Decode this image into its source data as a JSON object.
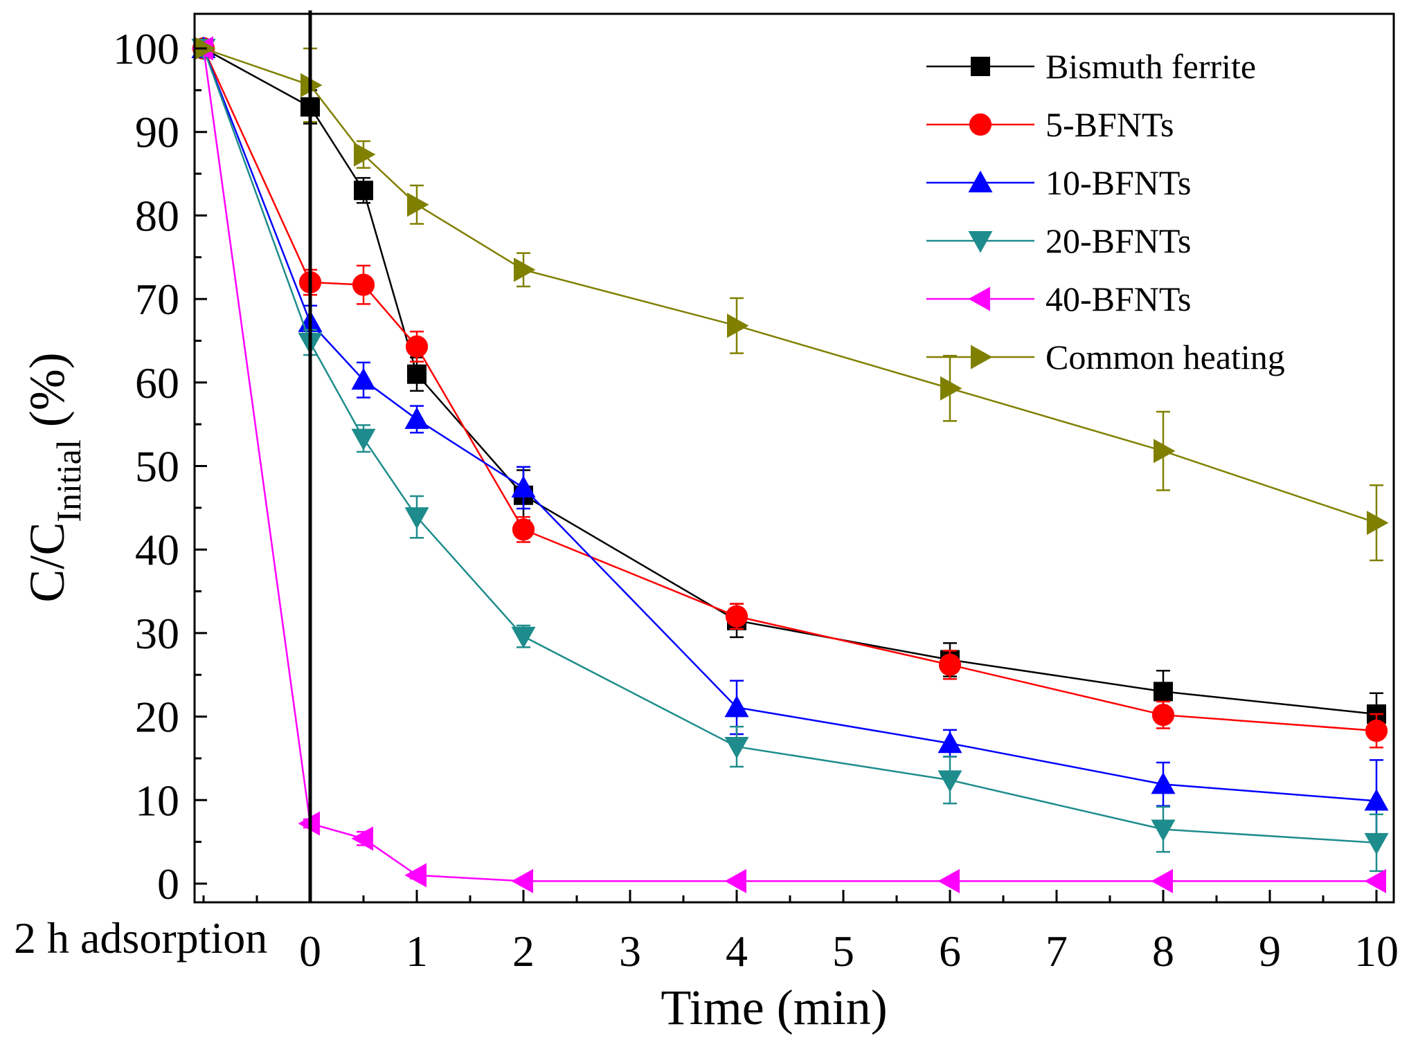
{
  "chart_data": {
    "type": "line",
    "title": "",
    "xlabel": "Time (min)",
    "ylabel_main": "C/C",
    "ylabel_sub": "Initial",
    "ylabel_suffix": " (%)",
    "pre_label": "2 h adsorption",
    "xlim": [
      -1.1,
      10
    ],
    "ylim": [
      0,
      100
    ],
    "xticks": [
      0,
      1,
      2,
      3,
      4,
      5,
      6,
      7,
      8,
      9,
      10
    ],
    "yticks": [
      0,
      10,
      20,
      30,
      40,
      50,
      60,
      70,
      80,
      90,
      100
    ],
    "x": [
      -1,
      0,
      0.5,
      1,
      2,
      4,
      6,
      8,
      10
    ],
    "legend_position": "top-right",
    "series": [
      {
        "name": "Bismuth ferrite",
        "color": "#000000",
        "marker": "square",
        "values": [
          100,
          93,
          83,
          61,
          46.5,
          31.5,
          26.8,
          23,
          20.3
        ],
        "errors": [
          0,
          2,
          1.5,
          2,
          3,
          2,
          2,
          2.5,
          2.5
        ]
      },
      {
        "name": "5-BFNTs",
        "color": "#ff0000",
        "marker": "circle",
        "values": [
          100,
          72,
          71.7,
          64.3,
          42.4,
          32,
          26.2,
          20.2,
          18.3
        ],
        "errors": [
          0,
          1.5,
          2.3,
          1.8,
          1.5,
          1.5,
          1.7,
          1.6,
          2
        ]
      },
      {
        "name": "10-BFNTs",
        "color": "#0000ff",
        "marker": "triangle-up",
        "values": [
          100,
          67.2,
          60.3,
          55.6,
          47.4,
          21.1,
          16.8,
          11.9,
          9.9
        ],
        "errors": [
          0,
          2,
          2.1,
          1.6,
          2.5,
          3.2,
          1.6,
          2.6,
          4.9
        ]
      },
      {
        "name": "20-BFNTs",
        "color": "#1e8c8c",
        "marker": "triangle-down",
        "values": [
          100,
          64.8,
          53.3,
          43.9,
          29.6,
          16.4,
          12.4,
          6.5,
          4.9
        ],
        "errors": [
          0,
          1.5,
          1.6,
          2.5,
          1.3,
          2.4,
          2.8,
          2.7,
          3.4
        ]
      },
      {
        "name": "40-BFNTs",
        "color": "#ff00ff",
        "marker": "triangle-left",
        "values": [
          100,
          7.2,
          5.4,
          1,
          0.3,
          0.3,
          0.3,
          0.3,
          0.3
        ],
        "errors": [
          0,
          0.5,
          0.8,
          0.4,
          0.2,
          0.2,
          0.2,
          0.2,
          0.2
        ]
      },
      {
        "name": "Common heating",
        "color": "#808000",
        "marker": "triangle-right",
        "values": [
          100,
          95.6,
          87.3,
          81.3,
          73.5,
          66.8,
          59.3,
          51.8,
          43.2
        ],
        "errors": [
          0,
          4.4,
          1.6,
          2.3,
          2,
          3.3,
          3.9,
          4.7,
          4.5
        ]
      }
    ]
  }
}
